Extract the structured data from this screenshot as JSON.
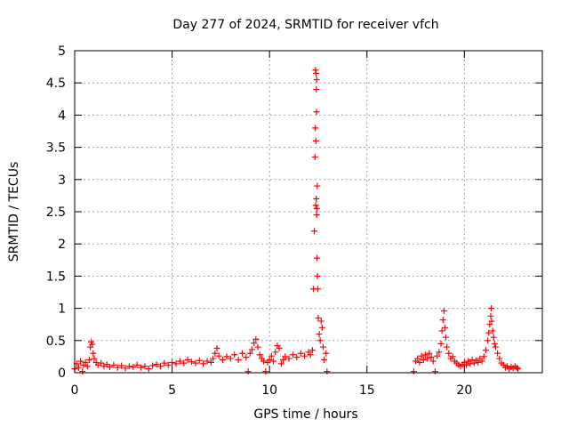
{
  "chart_data": {
    "type": "scatter",
    "title": "Day 277 of 2024, SRMTID for receiver vfch",
    "xlabel": "GPS time / hours",
    "ylabel": "SRMTID / TECUs",
    "xlim": [
      0,
      24
    ],
    "ylim": [
      0,
      5
    ],
    "xticks": [
      0,
      5,
      10,
      15,
      20
    ],
    "yticks": [
      0,
      0.5,
      1,
      1.5,
      2,
      2.5,
      3,
      3.5,
      4,
      4.5,
      5
    ],
    "grid": true,
    "marker": "+",
    "color": "#ff0000",
    "series": [
      {
        "name": "SRMTID",
        "points": [
          [
            0.0,
            0.06
          ],
          [
            0.1,
            0.14
          ],
          [
            0.2,
            0.08
          ],
          [
            0.3,
            0.18
          ],
          [
            0.4,
            0.02
          ],
          [
            0.45,
            0.12
          ],
          [
            0.55,
            0.16
          ],
          [
            0.65,
            0.1
          ],
          [
            0.75,
            0.2
          ],
          [
            0.8,
            0.4
          ],
          [
            0.85,
            0.48
          ],
          [
            0.9,
            0.44
          ],
          [
            0.95,
            0.3
          ],
          [
            1.0,
            0.22
          ],
          [
            1.1,
            0.16
          ],
          [
            1.2,
            0.12
          ],
          [
            1.35,
            0.15
          ],
          [
            1.5,
            0.1
          ],
          [
            1.65,
            0.13
          ],
          [
            1.8,
            0.09
          ],
          [
            2.0,
            0.12
          ],
          [
            2.2,
            0.08
          ],
          [
            2.4,
            0.11
          ],
          [
            2.6,
            0.07
          ],
          [
            2.8,
            0.1
          ],
          [
            3.0,
            0.09
          ],
          [
            3.2,
            0.12
          ],
          [
            3.4,
            0.08
          ],
          [
            3.6,
            0.1
          ],
          [
            3.8,
            0.06
          ],
          [
            4.0,
            0.11
          ],
          [
            4.2,
            0.13
          ],
          [
            4.4,
            0.1
          ],
          [
            4.6,
            0.15
          ],
          [
            4.8,
            0.12
          ],
          [
            5.0,
            0.16
          ],
          [
            5.2,
            0.14
          ],
          [
            5.4,
            0.18
          ],
          [
            5.6,
            0.15
          ],
          [
            5.8,
            0.2
          ],
          [
            6.0,
            0.17
          ],
          [
            6.2,
            0.15
          ],
          [
            6.4,
            0.19
          ],
          [
            6.6,
            0.14
          ],
          [
            6.8,
            0.18
          ],
          [
            7.0,
            0.16
          ],
          [
            7.1,
            0.22
          ],
          [
            7.2,
            0.3
          ],
          [
            7.3,
            0.38
          ],
          [
            7.4,
            0.26
          ],
          [
            7.6,
            0.2
          ],
          [
            7.8,
            0.25
          ],
          [
            8.0,
            0.22
          ],
          [
            8.2,
            0.28
          ],
          [
            8.4,
            0.2
          ],
          [
            8.6,
            0.3
          ],
          [
            8.8,
            0.24
          ],
          [
            8.9,
            0.02
          ],
          [
            9.0,
            0.3
          ],
          [
            9.1,
            0.36
          ],
          [
            9.2,
            0.46
          ],
          [
            9.3,
            0.52
          ],
          [
            9.4,
            0.4
          ],
          [
            9.5,
            0.28
          ],
          [
            9.6,
            0.22
          ],
          [
            9.7,
            0.18
          ],
          [
            9.8,
            0.02
          ],
          [
            9.9,
            0.16
          ],
          [
            10.0,
            0.2
          ],
          [
            10.1,
            0.26
          ],
          [
            10.2,
            0.18
          ],
          [
            10.3,
            0.32
          ],
          [
            10.4,
            0.42
          ],
          [
            10.5,
            0.38
          ],
          [
            10.6,
            0.14
          ],
          [
            10.7,
            0.2
          ],
          [
            10.8,
            0.25
          ],
          [
            11.0,
            0.22
          ],
          [
            11.2,
            0.28
          ],
          [
            11.4,
            0.24
          ],
          [
            11.6,
            0.3
          ],
          [
            11.8,
            0.26
          ],
          [
            12.0,
            0.32
          ],
          [
            12.1,
            0.28
          ],
          [
            12.2,
            0.35
          ],
          [
            12.25,
            1.3
          ],
          [
            12.3,
            2.2
          ],
          [
            12.33,
            3.35
          ],
          [
            12.36,
            4.7
          ],
          [
            12.39,
            4.65
          ],
          [
            12.42,
            4.55
          ],
          [
            12.4,
            4.4
          ],
          [
            12.35,
            3.8
          ],
          [
            12.38,
            3.6
          ],
          [
            12.41,
            4.05
          ],
          [
            12.37,
            2.6
          ],
          [
            12.4,
            2.7
          ],
          [
            12.43,
            2.55
          ],
          [
            12.45,
            2.9
          ],
          [
            12.42,
            2.45
          ],
          [
            12.44,
            1.78
          ],
          [
            12.46,
            1.5
          ],
          [
            12.48,
            1.3
          ],
          [
            12.5,
            0.85
          ],
          [
            12.55,
            0.6
          ],
          [
            12.6,
            0.5
          ],
          [
            12.65,
            0.8
          ],
          [
            12.7,
            0.7
          ],
          [
            12.75,
            0.4
          ],
          [
            12.8,
            0.2
          ],
          [
            12.9,
            0.3
          ],
          [
            12.95,
            0.02
          ],
          [
            17.4,
            0.02
          ],
          [
            17.5,
            0.18
          ],
          [
            17.6,
            0.22
          ],
          [
            17.7,
            0.16
          ],
          [
            17.8,
            0.26
          ],
          [
            17.9,
            0.2
          ],
          [
            18.0,
            0.28
          ],
          [
            18.1,
            0.22
          ],
          [
            18.2,
            0.3
          ],
          [
            18.3,
            0.24
          ],
          [
            18.4,
            0.18
          ],
          [
            18.5,
            0.02
          ],
          [
            18.6,
            0.26
          ],
          [
            18.7,
            0.32
          ],
          [
            18.8,
            0.45
          ],
          [
            18.85,
            0.65
          ],
          [
            18.9,
            0.82
          ],
          [
            18.95,
            0.96
          ],
          [
            19.0,
            0.7
          ],
          [
            19.05,
            0.55
          ],
          [
            19.1,
            0.4
          ],
          [
            19.2,
            0.3
          ],
          [
            19.3,
            0.22
          ],
          [
            19.4,
            0.25
          ],
          [
            19.5,
            0.18
          ],
          [
            19.6,
            0.15
          ],
          [
            19.7,
            0.12
          ],
          [
            19.8,
            0.1
          ],
          [
            19.9,
            0.13
          ],
          [
            20.0,
            0.16
          ],
          [
            20.1,
            0.12
          ],
          [
            20.2,
            0.18
          ],
          [
            20.3,
            0.14
          ],
          [
            20.4,
            0.2
          ],
          [
            20.5,
            0.15
          ],
          [
            20.6,
            0.19
          ],
          [
            20.7,
            0.16
          ],
          [
            20.8,
            0.22
          ],
          [
            20.9,
            0.18
          ],
          [
            21.0,
            0.25
          ],
          [
            21.1,
            0.35
          ],
          [
            21.2,
            0.5
          ],
          [
            21.25,
            0.62
          ],
          [
            21.3,
            0.75
          ],
          [
            21.35,
            0.88
          ],
          [
            21.38,
            1.0
          ],
          [
            21.4,
            0.8
          ],
          [
            21.45,
            0.65
          ],
          [
            21.5,
            0.55
          ],
          [
            21.55,
            0.45
          ],
          [
            21.6,
            0.4
          ],
          [
            21.7,
            0.3
          ],
          [
            21.8,
            0.22
          ],
          [
            21.9,
            0.15
          ],
          [
            22.0,
            0.12
          ],
          [
            22.1,
            0.08
          ],
          [
            22.2,
            0.1
          ],
          [
            22.3,
            0.06
          ],
          [
            22.4,
            0.09
          ],
          [
            22.5,
            0.07
          ],
          [
            22.6,
            0.1
          ],
          [
            22.7,
            0.08
          ],
          [
            22.75,
            0.06
          ]
        ]
      }
    ]
  }
}
